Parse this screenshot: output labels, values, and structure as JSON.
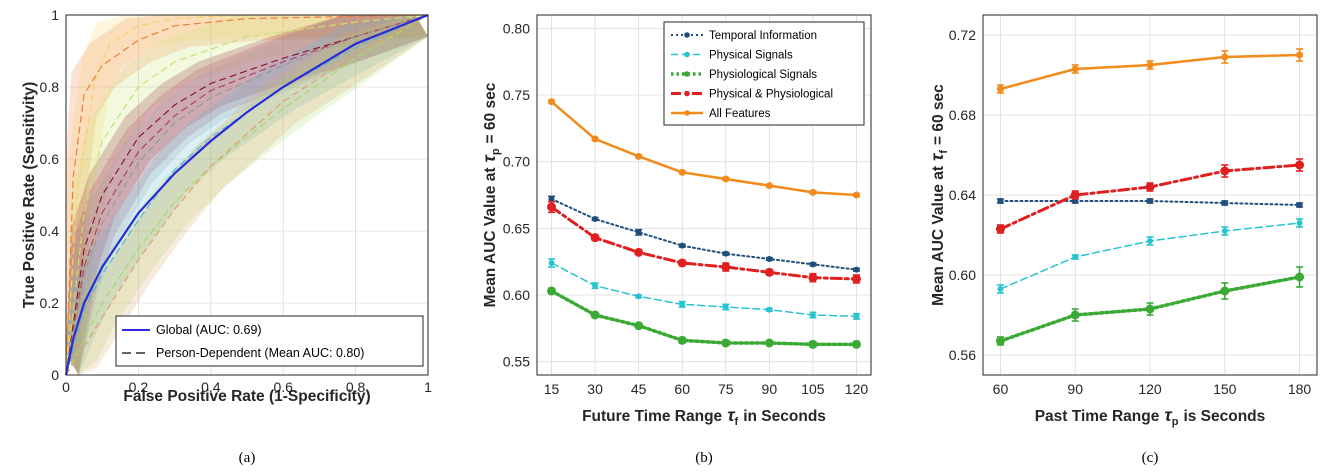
{
  "captions": [
    "(a)",
    "(b)",
    "(c)"
  ],
  "chart_data": [
    {
      "type": "line",
      "panel": "a",
      "xlabel": "False Positive Rate (1-Specificity)",
      "ylabel": "True Positive Rate (Sensitivity)",
      "xlim": [
        0,
        1
      ],
      "ylim": [
        0,
        1
      ],
      "xticks": [
        "0",
        "0.2",
        "0.4",
        "0.6",
        "0.8",
        "1"
      ],
      "yticks": [
        "0",
        "0.2",
        "0.4",
        "0.6",
        "0.8",
        "1"
      ],
      "grid": true,
      "legend_position": "bottom-right",
      "legend": [
        "Global (AUC: 0.69)",
        "Person-Dependent (Mean AUC: 0.80)"
      ],
      "series": [
        {
          "name": "Global (AUC: 0.69)",
          "style": "solid",
          "color": "#2b2bd9",
          "x": [
            0,
            0.02,
            0.05,
            0.1,
            0.2,
            0.3,
            0.4,
            0.5,
            0.6,
            0.7,
            0.8,
            0.9,
            1.0
          ],
          "y": [
            0,
            0.1,
            0.2,
            0.3,
            0.45,
            0.56,
            0.65,
            0.73,
            0.8,
            0.86,
            0.92,
            0.96,
            1.0
          ]
        },
        {
          "name": "Person-Dependent (Mean AUC: 0.80)",
          "style": "dashed",
          "color": "#000000",
          "curves": [
            {
              "color": "#f07a3a",
              "x": [
                0,
                0.02,
                0.05,
                0.1,
                0.2,
                0.3,
                0.5,
                1
              ],
              "y": [
                0,
                0.55,
                0.78,
                0.86,
                0.93,
                0.97,
                0.99,
                1
              ]
            },
            {
              "color": "#f5d36b",
              "x": [
                0,
                0.03,
                0.08,
                0.12,
                0.2,
                0.3,
                0.5,
                1
              ],
              "y": [
                0,
                0.5,
                0.82,
                0.92,
                0.97,
                0.99,
                1,
                1
              ]
            },
            {
              "color": "#c8e26b",
              "x": [
                0,
                0.05,
                0.1,
                0.2,
                0.3,
                0.5,
                0.8,
                1
              ],
              "y": [
                0,
                0.45,
                0.65,
                0.8,
                0.87,
                0.94,
                0.98,
                1
              ]
            },
            {
              "color": "#8b1a2b",
              "x": [
                0,
                0.05,
                0.1,
                0.2,
                0.3,
                0.4,
                0.6,
                0.8,
                1
              ],
              "y": [
                0,
                0.35,
                0.5,
                0.66,
                0.75,
                0.81,
                0.88,
                0.94,
                1
              ]
            },
            {
              "color": "#b0446a",
              "x": [
                0,
                0.05,
                0.1,
                0.2,
                0.3,
                0.4,
                0.6,
                0.8,
                1
              ],
              "y": [
                0,
                0.3,
                0.45,
                0.62,
                0.72,
                0.79,
                0.87,
                0.94,
                1
              ]
            },
            {
              "color": "#9a9a9a",
              "x": [
                0,
                0.05,
                0.1,
                0.2,
                0.3,
                0.4,
                0.6,
                0.8,
                1
              ],
              "y": [
                0,
                0.28,
                0.42,
                0.59,
                0.7,
                0.77,
                0.86,
                0.94,
                1
              ]
            },
            {
              "color": "#5ab4d6",
              "x": [
                0,
                0.05,
                0.1,
                0.2,
                0.3,
                0.4,
                0.6,
                0.8,
                1
              ],
              "y": [
                0,
                0.18,
                0.28,
                0.43,
                0.57,
                0.66,
                0.8,
                0.91,
                1
              ]
            },
            {
              "color": "#a6d96a",
              "x": [
                0,
                0.05,
                0.1,
                0.2,
                0.3,
                0.4,
                0.6,
                0.8,
                1
              ],
              "y": [
                0,
                0.1,
                0.2,
                0.35,
                0.48,
                0.58,
                0.74,
                0.88,
                1
              ]
            },
            {
              "color": "#e0a36b",
              "x": [
                0,
                0.05,
                0.1,
                0.2,
                0.3,
                0.4,
                0.6,
                0.8,
                1
              ],
              "y": [
                0,
                0.08,
                0.16,
                0.32,
                0.46,
                0.58,
                0.76,
                0.89,
                1
              ]
            }
          ]
        }
      ]
    },
    {
      "type": "line",
      "panel": "b",
      "xlabel": "Future Time Range",
      "xlabel_symbol": "τ",
      "xlabel_sub": "f",
      "xlabel_suffix": "in Seconds",
      "ylabel": "Mean AUC Value at",
      "ylabel_symbol": "τ",
      "ylabel_sub": "p",
      "ylabel_suffix": "= 60 sec",
      "xlim": [
        10,
        125
      ],
      "ylim": [
        0.54,
        0.81
      ],
      "grid": true,
      "legend_position": "top-right",
      "categories": [
        "15",
        "30",
        "45",
        "60",
        "75",
        "90",
        "105",
        "120"
      ],
      "x": [
        15,
        30,
        45,
        60,
        75,
        90,
        105,
        120
      ],
      "yticks": [
        "0.55",
        "0.60",
        "0.65",
        "0.70",
        "0.75",
        "0.80"
      ],
      "series": [
        {
          "name": "Temporal Information",
          "color": "#1f4e79",
          "style": "dotted",
          "values": [
            0.672,
            0.657,
            0.647,
            0.637,
            0.631,
            0.627,
            0.623,
            0.619
          ],
          "err": [
            0.002,
            0.001,
            0.002,
            0.001,
            0.001,
            0.001,
            0.001,
            0.001
          ]
        },
        {
          "name": "Physical Signals",
          "color": "#27c4d0",
          "style": "dashed",
          "values": [
            0.624,
            0.607,
            0.599,
            0.593,
            0.591,
            0.589,
            0.585,
            0.584
          ],
          "err": [
            0.003,
            0.002,
            0.001,
            0.002,
            0.002,
            0.001,
            0.002,
            0.002
          ]
        },
        {
          "name": "Physiological Signals",
          "color": "#3aaa35",
          "style": "dotted-thick",
          "values": [
            0.603,
            0.585,
            0.577,
            0.566,
            0.564,
            0.564,
            0.563,
            0.563
          ],
          "err": [
            0.002,
            0.002,
            0.001,
            0.002,
            0.002,
            0.001,
            0.002,
            0.002
          ]
        },
        {
          "name": "Physical & Physiological",
          "color": "#e02020",
          "style": "dashdot",
          "values": [
            0.666,
            0.643,
            0.632,
            0.624,
            0.621,
            0.617,
            0.613,
            0.612
          ],
          "err": [
            0.004,
            0.002,
            0.001,
            0.002,
            0.003,
            0.002,
            0.003,
            0.003
          ]
        },
        {
          "name": "All Features",
          "color": "#f28a1c",
          "style": "solid",
          "values": [
            0.745,
            0.717,
            0.704,
            0.692,
            0.687,
            0.682,
            0.677,
            0.675
          ],
          "err": [
            0.001,
            0.001,
            0.001,
            0.001,
            0.001,
            0.001,
            0.001,
            0.001
          ]
        }
      ]
    },
    {
      "type": "line",
      "panel": "c",
      "xlabel": "Past Time Range",
      "xlabel_symbol": "τ",
      "xlabel_sub": "p",
      "xlabel_suffix": "is Seconds",
      "ylabel": "Mean AUC Value at",
      "ylabel_symbol": "τ",
      "ylabel_sub": "f",
      "ylabel_suffix": "= 60 sec",
      "xlim": [
        53,
        187
      ],
      "ylim": [
        0.55,
        0.73
      ],
      "grid": true,
      "categories": [
        "60",
        "90",
        "120",
        "150",
        "180"
      ],
      "x": [
        60,
        90,
        120,
        150,
        180
      ],
      "yticks": [
        "0.56",
        "0.60",
        "0.64",
        "0.68",
        "0.72"
      ],
      "series": [
        {
          "name": "Temporal Information",
          "color": "#1f4e79",
          "style": "dotted",
          "values": [
            0.637,
            0.637,
            0.637,
            0.636,
            0.635
          ],
          "err": [
            0.001,
            0.001,
            0.001,
            0.001,
            0.001
          ]
        },
        {
          "name": "Physical Signals",
          "color": "#27c4d0",
          "style": "dashed",
          "values": [
            0.593,
            0.609,
            0.617,
            0.622,
            0.626
          ],
          "err": [
            0.002,
            0.001,
            0.002,
            0.002,
            0.002
          ]
        },
        {
          "name": "Physiological Signals",
          "color": "#3aaa35",
          "style": "dotted-thick",
          "values": [
            0.567,
            0.58,
            0.583,
            0.592,
            0.599
          ],
          "err": [
            0.002,
            0.003,
            0.003,
            0.004,
            0.005
          ]
        },
        {
          "name": "Physical & Physiological",
          "color": "#e02020",
          "style": "dashdot",
          "values": [
            0.623,
            0.64,
            0.644,
            0.652,
            0.655
          ],
          "err": [
            0.002,
            0.002,
            0.002,
            0.003,
            0.003
          ]
        },
        {
          "name": "All Features",
          "color": "#f28a1c",
          "style": "solid",
          "values": [
            0.693,
            0.703,
            0.705,
            0.709,
            0.71
          ],
          "err": [
            0.002,
            0.002,
            0.002,
            0.003,
            0.003
          ]
        }
      ]
    }
  ]
}
